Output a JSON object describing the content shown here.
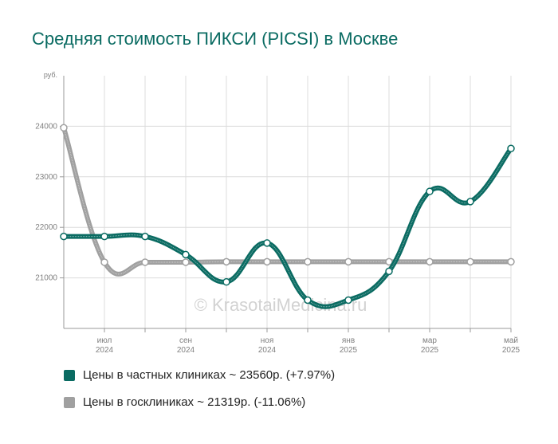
{
  "title": "Средняя стоимость ПИКСИ (PICSI) в Москве",
  "watermark": "© KrasotaiMedicina.ru",
  "chart_data": {
    "type": "line",
    "y_unit": "руб.",
    "ylim": [
      20000,
      25000
    ],
    "y_ticks": [
      "21000",
      "22000",
      "23000",
      "24000"
    ],
    "y_tick_values": [
      21000,
      22000,
      23000,
      24000
    ],
    "x_ticks": [
      {
        "month": "июл",
        "year": "2024",
        "index": 1
      },
      {
        "month": "сен",
        "year": "2024",
        "index": 3
      },
      {
        "month": "ноя",
        "year": "2024",
        "index": 5
      },
      {
        "month": "янв",
        "year": "2025",
        "index": 7
      },
      {
        "month": "мар",
        "year": "2025",
        "index": 9
      },
      {
        "month": "май",
        "year": "2025",
        "index": 11
      }
    ],
    "n_points": 12,
    "grid": true,
    "series": [
      {
        "name": "Цены в частных клиниках",
        "color": "#0a6b62",
        "values": [
          21820,
          21820,
          21820,
          21460,
          20920,
          21690,
          20560,
          20560,
          21130,
          22710,
          22510,
          23560
        ]
      },
      {
        "name": "Цены в госклиниках",
        "color": "#a0a0a0",
        "values": [
          23970,
          21310,
          21310,
          21310,
          21319,
          21319,
          21319,
          21319,
          21319,
          21319,
          21319,
          21319
        ]
      }
    ]
  },
  "legend": [
    {
      "label": "Цены в частных клиниках ~ 23560р. (+7.97%)",
      "color": "#0a6b62"
    },
    {
      "label": "Цены в госклиниках ~ 21319р. (-11.06%)",
      "color": "#a0a0a0"
    }
  ]
}
